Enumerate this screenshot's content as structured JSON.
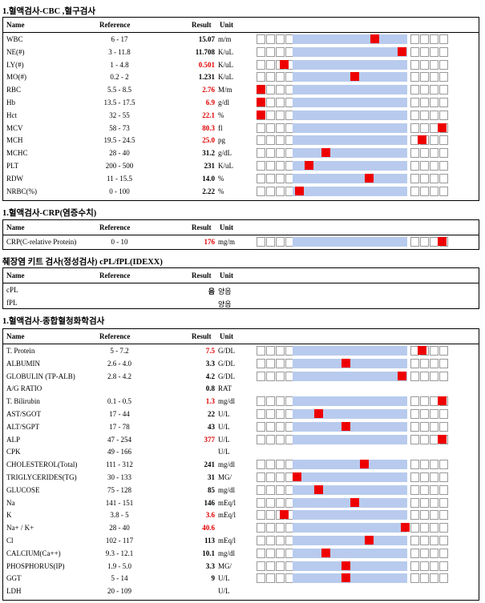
{
  "sections": {
    "cbc": {
      "title": "1.혈액검사-CBC ,혈구검사",
      "headers": {
        "name": "Name",
        "reference": "Reference",
        "result": "Result",
        "unit": "Unit"
      },
      "rows": [
        {
          "name": "WBC",
          "reference": "6 - 17",
          "result": "15.07",
          "unit": "m/m",
          "flag": "normal",
          "level": 0.72
        },
        {
          "name": "NE(#)",
          "reference": "3 - 11.8",
          "result": "11.708",
          "unit": "K/uL",
          "flag": "normal",
          "level": 0.97
        },
        {
          "name": "LY(#)",
          "reference": "1 - 4.8",
          "result": "0.501",
          "unit": "K/uL",
          "flag": "low",
          "level": -0.13
        },
        {
          "name": "MO(#)",
          "reference": "0.2 - 2",
          "result": "1.231",
          "unit": "K/uL",
          "flag": "normal",
          "level": 0.53
        },
        {
          "name": "RBC",
          "reference": "5.5 - 8.5",
          "result": "2.76",
          "unit": "M/m",
          "flag": "low",
          "level": -0.32
        },
        {
          "name": "Hb",
          "reference": "13.5 - 17.5",
          "result": "6.9",
          "unit": "g/dl",
          "flag": "low",
          "level": -0.32
        },
        {
          "name": "Hct",
          "reference": "32 - 55",
          "result": "22.1",
          "unit": "%",
          "flag": "low",
          "level": -0.32
        },
        {
          "name": "MCV",
          "reference": "58 - 73",
          "result": "80.3",
          "unit": "fl",
          "flag": "high",
          "level": 1.3
        },
        {
          "name": "MCH",
          "reference": "19.5 - 24.5",
          "result": "25.0",
          "unit": "pg",
          "flag": "high",
          "level": 1.1
        },
        {
          "name": "MCHC",
          "reference": "28 - 40",
          "result": "31.2",
          "unit": "g/dL",
          "flag": "normal",
          "level": 0.27
        },
        {
          "name": "PLT",
          "reference": "200 - 500",
          "result": "231",
          "unit": "K/uL",
          "flag": "normal",
          "level": 0.11
        },
        {
          "name": "RDW",
          "reference": "11 - 15.5",
          "result": "14.0",
          "unit": "%",
          "flag": "normal",
          "level": 0.67
        },
        {
          "name": "NRBC(%)",
          "reference": "0 - 100",
          "result": "2.22",
          "unit": "%",
          "flag": "normal",
          "level": 0.02
        }
      ]
    },
    "crp": {
      "title": "1.혈액검사-CRP(염증수치)",
      "headers": {
        "name": "Name",
        "reference": "Reference",
        "result": "Result",
        "unit": "Unit"
      },
      "rows": [
        {
          "name": "CRP(C-relative Protein)",
          "reference": "0 - 10",
          "result": "176",
          "unit": "mg/m",
          "flag": "high",
          "level": 1.3
        }
      ]
    },
    "kit": {
      "title": "췌장염 키트 검사(정성검사) cPL/fPL(IDEXX)",
      "headers": {
        "name": "Name",
        "reference": "Reference",
        "result": "Result",
        "unit": "Unit"
      },
      "rows": [
        {
          "name": "cPL",
          "reference": "",
          "result": "음",
          "unit": "양음"
        },
        {
          "name": "fPL",
          "reference": "",
          "result": "",
          "unit": "양음"
        }
      ]
    },
    "chem": {
      "title": "1.혈액검사-종합혈청화학검사",
      "headers": {
        "name": "Name",
        "reference": "Reference",
        "result": "Result",
        "unit": "Unit"
      },
      "rows": [
        {
          "name": "T. Protein",
          "reference": "5 - 7.2",
          "result": "7.5",
          "unit": "G/DL",
          "flag": "high",
          "level": 1.1
        },
        {
          "name": "ALBUMIN",
          "reference": "2.6 - 4.0",
          "result": "3.3",
          "unit": "G/DL",
          "flag": "normal",
          "level": 0.45
        },
        {
          "name": "GLOBULIN (TP-ALB)",
          "reference": "2.8 - 4.2",
          "result": "4.2",
          "unit": "G/DL",
          "flag": "normal",
          "level": 0.97
        },
        {
          "name": "A/G RATIO",
          "reference": "",
          "result": "0.8",
          "unit": "RAT",
          "flag": "none"
        },
        {
          "name": "T. Bilirubin",
          "reference": "0.1 - 0.5",
          "result": "1.3",
          "unit": "mg/dl",
          "flag": "high",
          "level": 1.3
        },
        {
          "name": "AST/SGOT",
          "reference": "17 - 44",
          "result": "22",
          "unit": "U/L",
          "flag": "normal",
          "level": 0.2
        },
        {
          "name": "ALT/SGPT",
          "reference": "17 - 78",
          "result": "43",
          "unit": "U/L",
          "flag": "normal",
          "level": 0.45
        },
        {
          "name": "ALP",
          "reference": "47 - 254",
          "result": "377",
          "unit": "U/L",
          "flag": "high",
          "level": 1.3
        },
        {
          "name": "CPK",
          "reference": "49 - 166",
          "result": "",
          "unit": "U/L",
          "flag": "none"
        },
        {
          "name": "CHOLESTEROL(Total)",
          "reference": "111 - 312",
          "result": "241",
          "unit": "mg/dl",
          "flag": "normal",
          "level": 0.62
        },
        {
          "name": "TRIGLYCERIDES(TG)",
          "reference": "30 - 133",
          "result": "31",
          "unit": "MG/",
          "flag": "normal",
          "level": 0.0
        },
        {
          "name": "GLUCOSE",
          "reference": "75 - 128",
          "result": "85",
          "unit": "mg/dl",
          "flag": "normal",
          "level": 0.2
        },
        {
          "name": "Na",
          "reference": "141 - 151",
          "result": "146",
          "unit": "mEq/l",
          "flag": "normal",
          "level": 0.53
        },
        {
          "name": "K",
          "reference": "3.8 - 5",
          "result": "3.6",
          "unit": "mEq/l",
          "flag": "low",
          "level": -0.13
        },
        {
          "name": "Na+ / K+",
          "reference": "28 - 40",
          "result": "40.6",
          "unit": "",
          "flag": "high",
          "level": 1.0
        },
        {
          "name": "Cl",
          "reference": "102 - 117",
          "result": "113",
          "unit": "mEq/l",
          "flag": "normal",
          "level": 0.67
        },
        {
          "name": "CALCIUM(Ca++)",
          "reference": "9.3 - 12.1",
          "result": "10.1",
          "unit": "mg/dl",
          "flag": "normal",
          "level": 0.27
        },
        {
          "name": "PHOSPHORUS(IP)",
          "reference": "1.9 - 5.0",
          "result": "3.3",
          "unit": "MG/",
          "flag": "normal",
          "level": 0.45
        },
        {
          "name": "GGT",
          "reference": "5 - 14",
          "result": "9",
          "unit": "U/L",
          "flag": "normal",
          "level": 0.45
        },
        {
          "name": "LDH",
          "reference": "20 - 109",
          "result": "",
          "unit": "U/L",
          "flag": "none"
        }
      ]
    }
  },
  "colors": {
    "normal_band": "#b8cbee",
    "marker": "#ee0000",
    "abnormal_text": "#e00000"
  }
}
